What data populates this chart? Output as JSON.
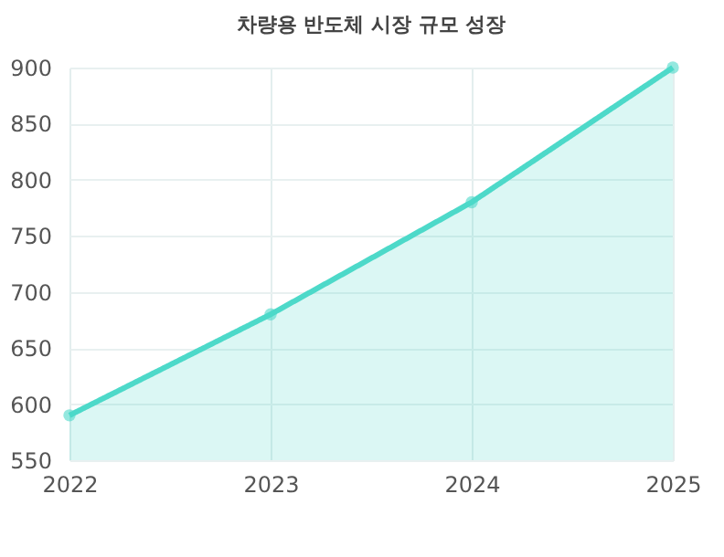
{
  "chart_data": {
    "type": "area",
    "title": "차량용 반도체 시장 규모 성장",
    "categories": [
      "2022",
      "2023",
      "2024",
      "2025"
    ],
    "series": [
      {
        "color": "#4dd9c9",
        "values": [
          590,
          680,
          780,
          900
        ]
      }
    ],
    "ylim": [
      550,
      900
    ],
    "yticks": [
      550,
      600,
      650,
      700,
      750,
      800,
      850,
      900
    ],
    "grid": true,
    "marker": "circle",
    "line_style": "solid"
  }
}
